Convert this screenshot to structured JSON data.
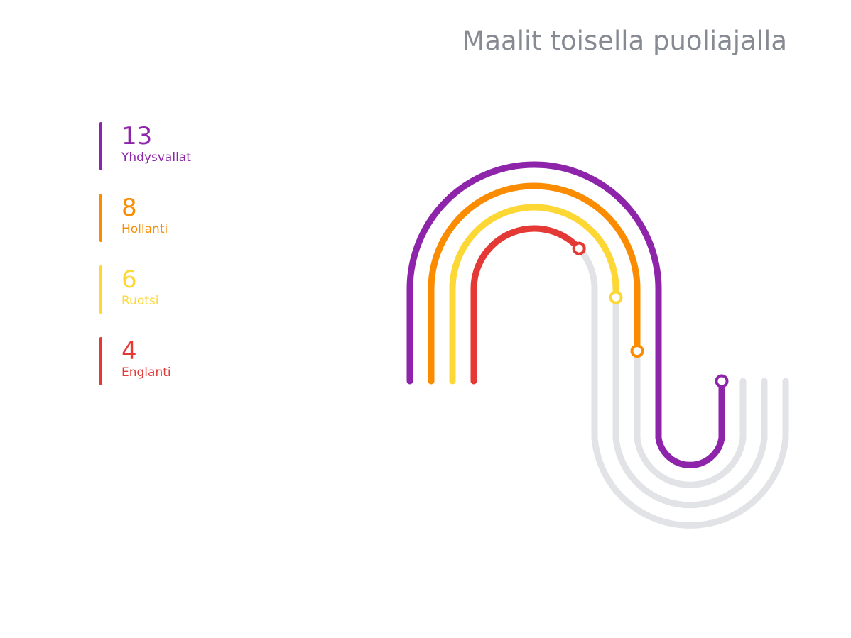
{
  "header": {
    "title": "Maalit toisella puoliajalla"
  },
  "chart_data": {
    "type": "line",
    "title": "Maalit toisella puoliajalla",
    "series": [
      {
        "name": "Yhdysvallat",
        "value": 13,
        "label": "13",
        "color": "#8e24aa"
      },
      {
        "name": "Hollanti",
        "value": 8,
        "label": "8",
        "color": "#fb8c00"
      },
      {
        "name": "Ruotsi",
        "value": 6,
        "label": "6",
        "color": "#fdd835"
      },
      {
        "name": "Englanti",
        "value": 4,
        "label": "4",
        "color": "#e53935"
      }
    ],
    "track_color": "#e2e3e6",
    "max_value": 13
  }
}
